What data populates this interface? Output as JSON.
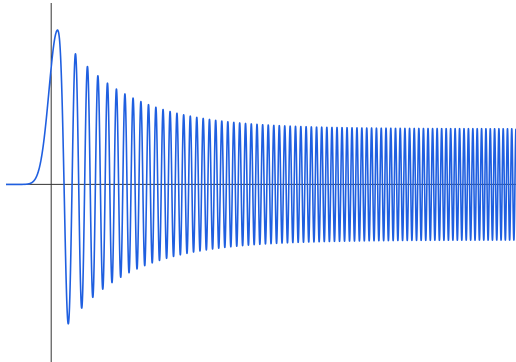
{
  "chart_data": {
    "type": "line",
    "title": "",
    "xlabel": "",
    "ylabel": "",
    "grid": false,
    "legend": "none",
    "xlim": [
      -0.7,
      7.2
    ],
    "ylim": [
      -2.3,
      2.35
    ],
    "line_color": "#1f5fe0",
    "axis_color": "#333333",
    "series": [
      {
        "function": "damped-chirp",
        "x_start": -0.7,
        "x_end": 7.2,
        "envelope_peak": 2.0,
        "envelope_floor": 0.72,
        "peak_maximum": {
          "x": 0.1,
          "y": 1.97
        },
        "first_minimum": {
          "x": 0.33,
          "y": -1.52
        },
        "cycles": 80
      }
    ]
  }
}
